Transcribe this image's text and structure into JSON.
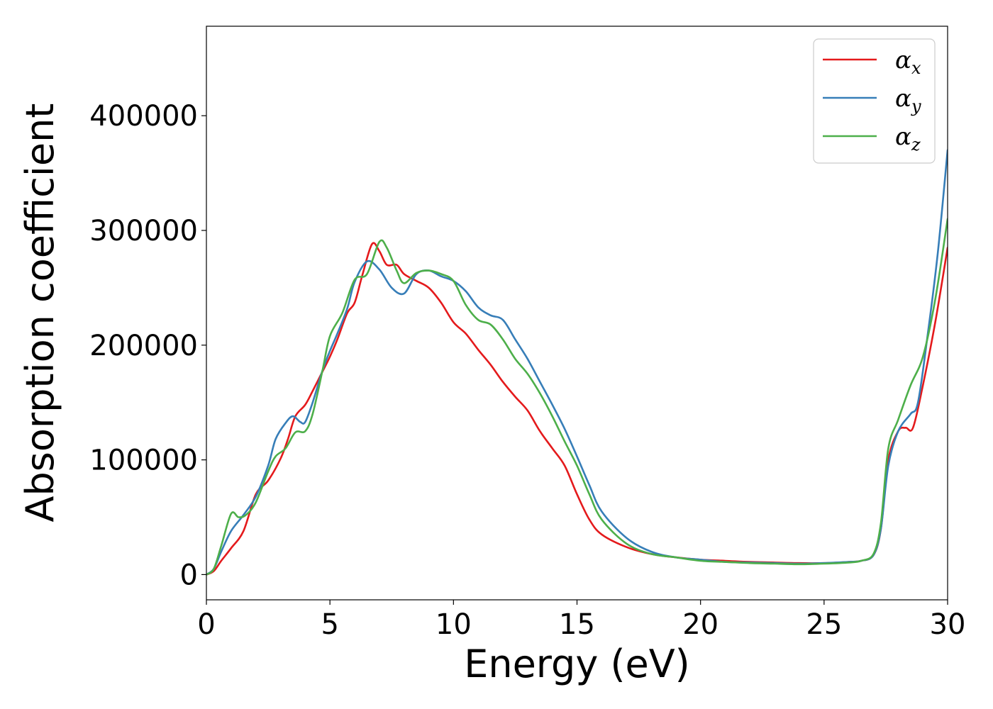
{
  "chart_data": {
    "type": "line",
    "xlabel": "Energy (eV)",
    "ylabel": "Absorption coefficient",
    "xlim": [
      0,
      30
    ],
    "ylim": [
      -22000,
      478000
    ],
    "xticks": [
      0,
      5,
      10,
      15,
      20,
      25,
      30
    ],
    "yticks": [
      0,
      100000,
      200000,
      300000,
      400000
    ],
    "grid": false,
    "legend_position": "top-right",
    "series": [
      {
        "name": "α_x",
        "symbol": "α",
        "subscript": "x",
        "color": "#e41a1c",
        "x": [
          0,
          0.3,
          0.6,
          1.0,
          1.5,
          2.0,
          2.5,
          3.0,
          3.3,
          3.6,
          4.0,
          4.3,
          4.7,
          5.0,
          5.3,
          5.7,
          6.0,
          6.3,
          6.7,
          7.0,
          7.3,
          7.7,
          8.0,
          8.5,
          9.0,
          9.5,
          10.0,
          10.5,
          11.0,
          11.5,
          12.0,
          12.5,
          13.0,
          13.5,
          14.0,
          14.5,
          15.0,
          15.5,
          16.0,
          17.0,
          18.0,
          19.0,
          20.0,
          21.0,
          22.0,
          23.0,
          24.0,
          25.0,
          26.0,
          26.5,
          27.0,
          27.3,
          27.6,
          28.0,
          28.3,
          28.6,
          29.0,
          29.5,
          30.0
        ],
        "y": [
          0,
          3000,
          12000,
          23000,
          38000,
          70000,
          82000,
          101000,
          118000,
          138000,
          148000,
          160000,
          177000,
          190000,
          205000,
          228000,
          237000,
          260000,
          288000,
          282000,
          270000,
          270000,
          262000,
          256000,
          250000,
          237000,
          220000,
          210000,
          196000,
          183000,
          168000,
          155000,
          143000,
          125000,
          110000,
          95000,
          70000,
          48000,
          35000,
          24000,
          18000,
          15000,
          13000,
          12000,
          11000,
          10500,
          10000,
          10000,
          11000,
          12000,
          17000,
          40000,
          100000,
          125000,
          128000,
          128000,
          165000,
          220000,
          285000
        ]
      },
      {
        "name": "α_y",
        "symbol": "α",
        "subscript": "y",
        "color": "#377eb8",
        "x": [
          0,
          0.3,
          0.6,
          1.0,
          1.5,
          2.0,
          2.5,
          2.8,
          3.2,
          3.5,
          3.8,
          4.0,
          4.3,
          4.7,
          5.0,
          5.3,
          5.7,
          6.0,
          6.5,
          7.0,
          7.5,
          8.0,
          8.5,
          9.0,
          9.5,
          10.0,
          10.5,
          11.0,
          11.5,
          12.0,
          12.5,
          13.0,
          13.5,
          14.0,
          14.5,
          15.0,
          15.5,
          16.0,
          17.0,
          18.0,
          19.0,
          20.0,
          21.0,
          22.0,
          23.0,
          24.0,
          25.0,
          26.0,
          26.5,
          27.0,
          27.3,
          27.6,
          28.0,
          28.5,
          28.8,
          29.2,
          29.6,
          30.0
        ],
        "y": [
          0,
          5000,
          20000,
          38000,
          52000,
          68000,
          95000,
          118000,
          132000,
          138000,
          133000,
          133000,
          150000,
          178000,
          195000,
          210000,
          232000,
          255000,
          273000,
          266000,
          250000,
          245000,
          262000,
          265000,
          260000,
          256000,
          247000,
          233000,
          226000,
          222000,
          205000,
          188000,
          168000,
          148000,
          127000,
          103000,
          78000,
          55000,
          32000,
          20000,
          15000,
          13000,
          11000,
          10500,
          10000,
          9500,
          10000,
          11000,
          12000,
          17000,
          40000,
          95000,
          125000,
          140000,
          150000,
          210000,
          280000,
          370000
        ]
      },
      {
        "name": "α_z",
        "symbol": "α",
        "subscript": "z",
        "color": "#4daf4a",
        "x": [
          0,
          0.3,
          0.6,
          1.0,
          1.3,
          1.6,
          2.0,
          2.5,
          2.8,
          3.2,
          3.6,
          4.0,
          4.3,
          4.7,
          5.0,
          5.5,
          6.0,
          6.5,
          7.0,
          7.3,
          7.7,
          8.0,
          8.5,
          9.0,
          9.5,
          10.0,
          10.5,
          11.0,
          11.5,
          12.0,
          12.5,
          13.0,
          13.5,
          14.0,
          14.5,
          15.0,
          15.5,
          16.0,
          17.0,
          18.0,
          19.0,
          20.0,
          21.0,
          22.0,
          23.0,
          24.0,
          25.0,
          26.0,
          26.5,
          27.0,
          27.3,
          27.6,
          28.0,
          28.5,
          29.0,
          29.5,
          30.0
        ],
        "y": [
          0,
          5000,
          25000,
          53000,
          50000,
          52000,
          63000,
          90000,
          103000,
          110000,
          124000,
          125000,
          140000,
          178000,
          208000,
          228000,
          257000,
          262000,
          290000,
          285000,
          265000,
          254000,
          263000,
          265000,
          262000,
          256000,
          235000,
          222000,
          218000,
          205000,
          188000,
          175000,
          158000,
          138000,
          116000,
          95000,
          70000,
          48000,
          27000,
          18000,
          15000,
          12000,
          11000,
          10000,
          9500,
          9000,
          9500,
          10500,
          12000,
          18000,
          45000,
          110000,
          135000,
          165000,
          190000,
          240000,
          310000
        ]
      }
    ]
  }
}
